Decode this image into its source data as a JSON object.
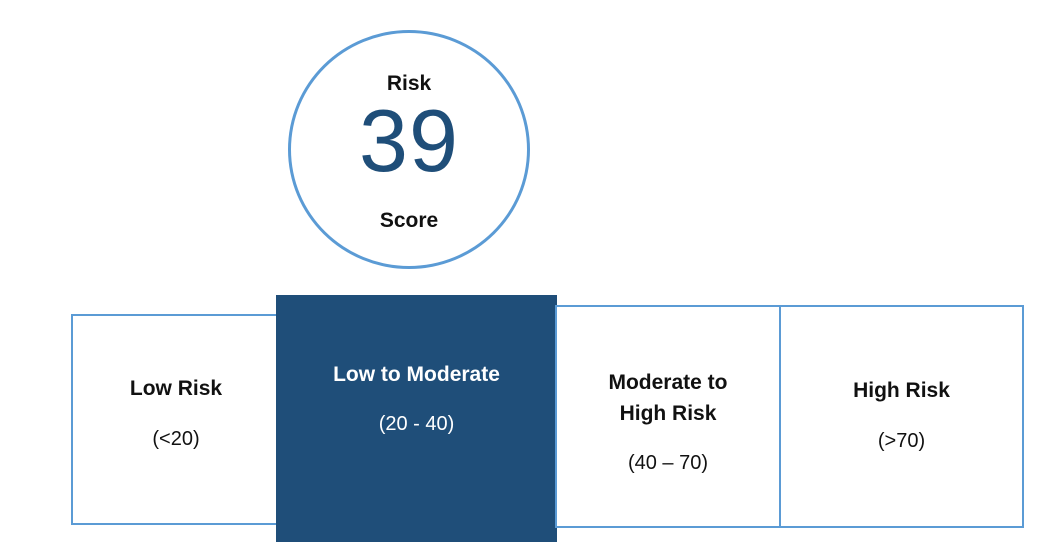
{
  "score": {
    "top_label": "Risk",
    "value": "39",
    "bottom_label": "Score"
  },
  "colors": {
    "outline": "#5b9bd5",
    "highlight": "#1f4e79"
  },
  "bands": [
    {
      "label": "Low Risk",
      "range": "(<20)"
    },
    {
      "label": "Low to Moderate",
      "range": "(20 - 40)",
      "highlighted": true
    },
    {
      "label_line1": "Moderate to",
      "label_line2": "High Risk",
      "range": "(40 – 70)"
    },
    {
      "label": "High Risk",
      "range": "(>70)"
    }
  ]
}
